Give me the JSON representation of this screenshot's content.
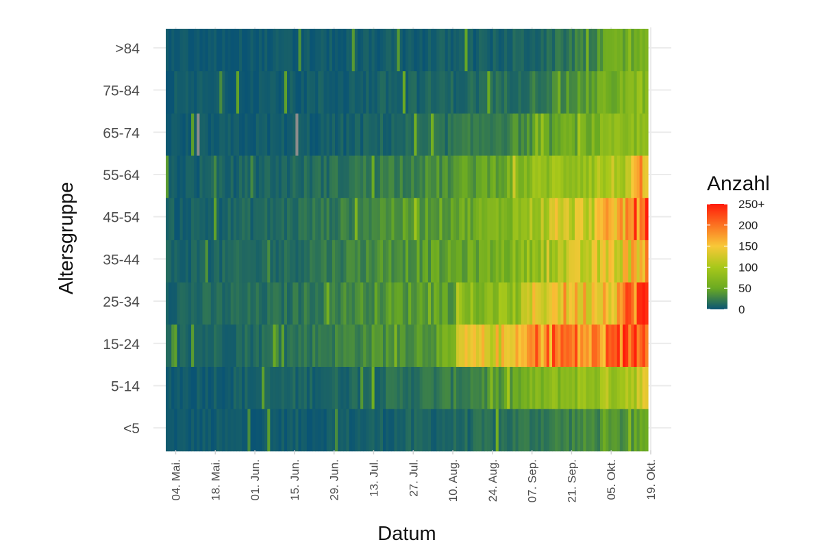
{
  "chart_data": {
    "type": "heatmap",
    "xlabel": "Datum",
    "ylabel": "Altersgruppe",
    "legend": {
      "title": "Anzahl",
      "placement": "right",
      "ticks": [
        "0",
        "50",
        "100",
        "150",
        "200",
        "250+"
      ],
      "tick_values": [
        0,
        50,
        100,
        150,
        200,
        250
      ]
    },
    "colors": {
      "low": "#0a5474",
      "mid_low": "#6aaa22",
      "mid": "#a8c81a",
      "mid_high": "#f8c838",
      "high": "#ff1c0a",
      "missing": "#8c8c8c",
      "grid": "#ebebeb"
    },
    "x_range": [
      "2020-04-29",
      "2020-10-16"
    ],
    "x_ticks": [
      "04. Mai.",
      "18. Mai.",
      "01. Jun.",
      "15. Jun.",
      "29. Jun.",
      "13. Jul.",
      "27. Jul.",
      "10. Aug.",
      "24. Aug.",
      "07. Sep.",
      "21. Sep.",
      "05. Okt.",
      "19. Okt."
    ],
    "x_tick_dates": [
      "2020-05-04",
      "2020-05-18",
      "2020-06-01",
      "2020-06-15",
      "2020-06-29",
      "2020-07-13",
      "2020-07-27",
      "2020-08-10",
      "2020-08-24",
      "2020-09-07",
      "2020-09-21",
      "2020-10-05",
      "2020-10-19"
    ],
    "y_categories": [
      "<5",
      "5-14",
      "15-24",
      "25-34",
      "35-44",
      "45-54",
      "55-64",
      "65-74",
      "75-84",
      ">84"
    ],
    "missing_cells": [
      {
        "group": "65-74",
        "date": "2020-05-10"
      },
      {
        "group": "65-74",
        "date": "2020-06-14"
      }
    ],
    "series": [
      {
        "group": "<5",
        "trend": [
          [
            0,
            2
          ],
          [
            60,
            5
          ],
          [
            100,
            10
          ],
          [
            120,
            16
          ],
          [
            140,
            25
          ],
          [
            160,
            35
          ],
          [
            171,
            45
          ]
        ]
      },
      {
        "group": "5-14",
        "trend": [
          [
            0,
            4
          ],
          [
            60,
            10
          ],
          [
            90,
            18
          ],
          [
            105,
            25
          ],
          [
            120,
            40
          ],
          [
            130,
            62
          ],
          [
            140,
            75
          ],
          [
            150,
            85
          ],
          [
            160,
            100
          ],
          [
            171,
            125
          ]
        ]
      },
      {
        "group": "15-24",
        "trend": [
          [
            0,
            8
          ],
          [
            40,
            15
          ],
          [
            60,
            26
          ],
          [
            75,
            35
          ],
          [
            90,
            40
          ],
          [
            102,
            55
          ],
          [
            103,
            125
          ],
          [
            115,
            135
          ],
          [
            125,
            140
          ],
          [
            130,
            185
          ],
          [
            140,
            200
          ],
          [
            150,
            175
          ],
          [
            160,
            200
          ],
          [
            165,
            225
          ],
          [
            171,
            250
          ]
        ]
      },
      {
        "group": "25-34",
        "trend": [
          [
            0,
            10
          ],
          [
            40,
            15
          ],
          [
            60,
            28
          ],
          [
            80,
            40
          ],
          [
            102,
            45
          ],
          [
            103,
            60
          ],
          [
            115,
            72
          ],
          [
            125,
            85
          ],
          [
            130,
            130
          ],
          [
            140,
            155
          ],
          [
            150,
            150
          ],
          [
            160,
            175
          ],
          [
            165,
            205
          ],
          [
            171,
            250
          ]
        ]
      },
      {
        "group": "35-44",
        "trend": [
          [
            0,
            8
          ],
          [
            40,
            12
          ],
          [
            60,
            24
          ],
          [
            80,
            38
          ],
          [
            100,
            45
          ],
          [
            115,
            58
          ],
          [
            125,
            72
          ],
          [
            135,
            100
          ],
          [
            150,
            120
          ],
          [
            160,
            135
          ],
          [
            165,
            150
          ],
          [
            171,
            190
          ]
        ]
      },
      {
        "group": "45-54",
        "trend": [
          [
            0,
            6
          ],
          [
            40,
            12
          ],
          [
            60,
            22
          ],
          [
            80,
            38
          ],
          [
            100,
            48
          ],
          [
            115,
            62
          ],
          [
            125,
            80
          ],
          [
            135,
            110
          ],
          [
            150,
            125
          ],
          [
            160,
            160
          ],
          [
            165,
            185
          ],
          [
            171,
            250
          ]
        ]
      },
      {
        "group": "55-64",
        "trend": [
          [
            0,
            5
          ],
          [
            40,
            10
          ],
          [
            60,
            16
          ],
          [
            80,
            26
          ],
          [
            100,
            35
          ],
          [
            115,
            50
          ],
          [
            125,
            68
          ],
          [
            135,
            85
          ],
          [
            150,
            95
          ],
          [
            160,
            105
          ],
          [
            165,
            120
          ],
          [
            171,
            175
          ]
        ]
      },
      {
        "group": "65-74",
        "trend": [
          [
            0,
            2
          ],
          [
            60,
            5
          ],
          [
            80,
            10
          ],
          [
            100,
            16
          ],
          [
            115,
            25
          ],
          [
            125,
            32
          ],
          [
            135,
            42
          ],
          [
            150,
            60
          ],
          [
            165,
            72
          ],
          [
            171,
            82
          ]
        ]
      },
      {
        "group": "75-84",
        "trend": [
          [
            0,
            3
          ],
          [
            60,
            5
          ],
          [
            100,
            10
          ],
          [
            120,
            15
          ],
          [
            135,
            25
          ],
          [
            150,
            45
          ],
          [
            160,
            62
          ],
          [
            171,
            78
          ]
        ]
      },
      {
        "group": ">84",
        "trend": [
          [
            0,
            1
          ],
          [
            60,
            3
          ],
          [
            90,
            5
          ],
          [
            115,
            6
          ],
          [
            135,
            12
          ],
          [
            150,
            28
          ],
          [
            158,
            48
          ],
          [
            171,
            58
          ]
        ]
      }
    ],
    "series_note": "trend points are [days after 2020-04-29, Anzahl]; daily cells vary around these values"
  }
}
